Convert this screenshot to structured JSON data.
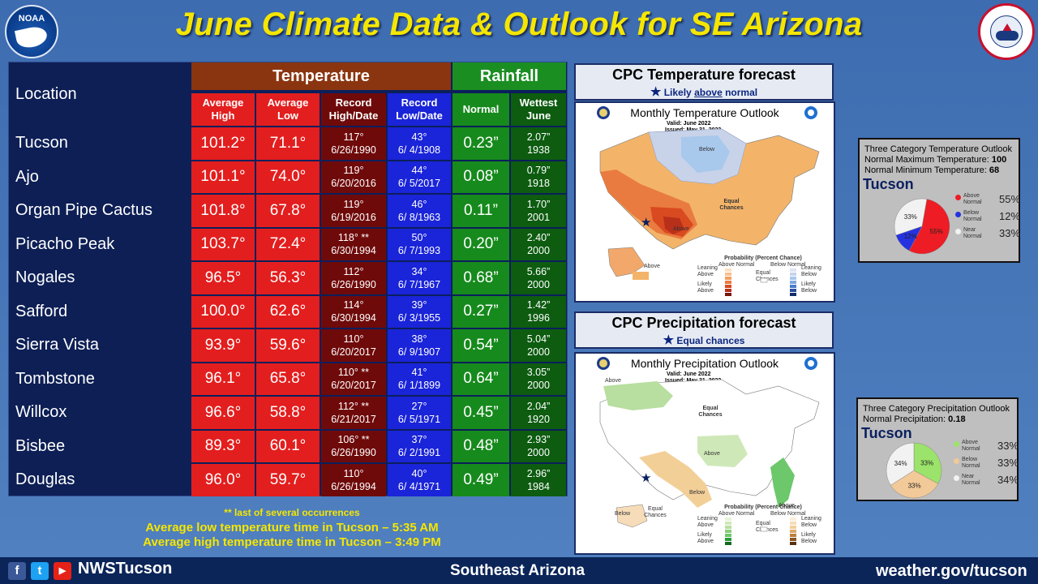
{
  "title": "June Climate Data & Outlook for SE Arizona",
  "table": {
    "location_header": "Location",
    "temperature_header": "Temperature",
    "rainfall_header": "Rainfall",
    "col_avg_high": "Average High",
    "col_avg_low": "Average Low",
    "col_record_high": "Record High/Date",
    "col_record_low": "Record Low/Date",
    "col_normal": "Normal",
    "col_wettest": "Wettest June",
    "rows": [
      {
        "name": "Tucson",
        "hi": "101.2°",
        "lo": "71.1°",
        "rh": "117°",
        "rhd": "6/26/1990",
        "rl": "43°",
        "rld": "6/ 4/1908",
        "norm": "0.23”",
        "wet": "2.07”",
        "wety": "1938"
      },
      {
        "name": "Ajo",
        "hi": "101.1°",
        "lo": "74.0°",
        "rh": "119°",
        "rhd": "6/20/2016",
        "rl": "44°",
        "rld": "6/ 5/2017",
        "norm": "0.08”",
        "wet": "0.79”",
        "wety": "1918"
      },
      {
        "name": "Organ Pipe Cactus",
        "hi": "101.8°",
        "lo": "67.8°",
        "rh": "119°",
        "rhd": "6/19/2016",
        "rl": "46°",
        "rld": "6/ 8/1963",
        "norm": "0.11”",
        "wet": "1.70”",
        "wety": "2001"
      },
      {
        "name": "Picacho Peak",
        "hi": "103.7°",
        "lo": "72.4°",
        "rh": "118° **",
        "rhd": "6/30/1994",
        "rl": "50°",
        "rld": "6/ 7/1993",
        "norm": "0.20”",
        "wet": "2.40”",
        "wety": "2000"
      },
      {
        "name": "Nogales",
        "hi": "96.5°",
        "lo": "56.3°",
        "rh": "112°",
        "rhd": "6/26/1990",
        "rl": "34°",
        "rld": "6/ 7/1967",
        "norm": "0.68”",
        "wet": "5.66”",
        "wety": "2000"
      },
      {
        "name": "Safford",
        "hi": "100.0°",
        "lo": "62.6°",
        "rh": "114°",
        "rhd": "6/30/1994",
        "rl": "39°",
        "rld": "6/ 3/1955",
        "norm": "0.27”",
        "wet": "1.42”",
        "wety": "1996"
      },
      {
        "name": "Sierra Vista",
        "hi": "93.9°",
        "lo": "59.6°",
        "rh": "110°",
        "rhd": "6/20/2017",
        "rl": "38°",
        "rld": "6/ 9/1907",
        "norm": "0.54”",
        "wet": "5.04”",
        "wety": "2000"
      },
      {
        "name": "Tombstone",
        "hi": "96.1°",
        "lo": "65.8°",
        "rh": "110° **",
        "rhd": "6/20/2017",
        "rl": "41°",
        "rld": "6/ 1/1899",
        "norm": "0.64”",
        "wet": "3.05”",
        "wety": "2000"
      },
      {
        "name": "Willcox",
        "hi": "96.6°",
        "lo": "58.8°",
        "rh": "112° **",
        "rhd": "6/21/2017",
        "rl": "27°",
        "rld": "6/ 5/1971",
        "norm": "0.45”",
        "wet": "2.04”",
        "wety": "1920"
      },
      {
        "name": "Bisbee",
        "hi": "89.3°",
        "lo": "60.1°",
        "rh": "106° **",
        "rhd": "6/26/1990",
        "rl": "37°",
        "rld": "6/ 2/1991",
        "norm": "0.48”",
        "wet": "2.93”",
        "wety": "2000"
      },
      {
        "name": "Douglas",
        "hi": "96.0°",
        "lo": "59.7°",
        "rh": "110°",
        "rhd": "6/26/1994",
        "rl": "40°",
        "rld": "6/ 4/1971",
        "norm": "0.49”",
        "wet": "2.96”",
        "wety": "1984"
      }
    ]
  },
  "notes": {
    "occurrences": "** last of several occurrences",
    "low_time": "Average low temperature time in Tucson – 5:35 AM",
    "high_time": "Average high temperature time in Tucson – 3:49 PM"
  },
  "temp_forecast": {
    "header": "CPC Temperature forecast",
    "subtitle_pre": "Likely ",
    "subtitle_em": "above",
    "subtitle_post": " normal",
    "map_title": "Monthly Temperature Outlook",
    "valid": "Valid:  June 2022",
    "issued": "Issued:  May 31, 2022",
    "labels": {
      "below": "Below",
      "equal": "Equal Chances",
      "above": "Above",
      "above_ak": "Above"
    }
  },
  "precip_forecast": {
    "header": "CPC Precipitation forecast",
    "subtitle": "Equal chances",
    "map_title": "Monthly Precipitation Outlook",
    "valid": "Valid:  June 2022",
    "issued": "Issued:  May 31, 2022",
    "labels": {
      "above_nw": "Above",
      "equal": "Equal Chances",
      "above_c": "Above",
      "below": "Below",
      "above_se": "Above",
      "below_ak": "Below",
      "equal_ak": "Equal Chances"
    }
  },
  "temp_outlook_panel": {
    "title": "Three Category Temperature Outlook",
    "max_label": "Normal Maximum Temperature: ",
    "max_value": "100",
    "min_label": "Normal Minimum Temperature: ",
    "min_value": "68",
    "city": "Tucson",
    "pie": [
      {
        "label": "Above Normal",
        "value": 55,
        "pct": "55%",
        "color": "#ee1c24"
      },
      {
        "label": "Below Normal",
        "value": 12,
        "pct": "12%",
        "color": "#2632e0"
      },
      {
        "label": "Near Normal",
        "value": 33,
        "pct": "33%",
        "color": "#f2f2f2"
      }
    ]
  },
  "precip_outlook_panel": {
    "title": "Three Category Precipitation Outlook",
    "norm_label": "Normal Precipitation: ",
    "norm_value": "0.18",
    "city": "Tucson",
    "pie": [
      {
        "label": "Above Normal",
        "value": 33,
        "pct": "33%",
        "color": "#9be36a"
      },
      {
        "label": "Below Normal",
        "value": 33,
        "pct": "33%",
        "color": "#f2c998"
      },
      {
        "label": "Near Normal",
        "value": 34,
        "pct": "34%",
        "color": "#f2f2f2"
      }
    ]
  },
  "legend_text": {
    "prob": "Probability (Percent Chance)",
    "above_normal": "Above Normal",
    "below_normal": "Below Normal",
    "leaning_above": "Leaning Above",
    "leaning_below": "Leaning Below",
    "likely_above": "Likely Above",
    "likely_below": "Likely Below",
    "equal_chances": "Equal Chances"
  },
  "footer": {
    "handle": "NWSTucson",
    "center": "Southeast Arizona",
    "url": "weather.gov/tucson"
  },
  "logos": {
    "noaa": "NOAA",
    "nws": "NATIONAL WEATHER SERVICE"
  }
}
